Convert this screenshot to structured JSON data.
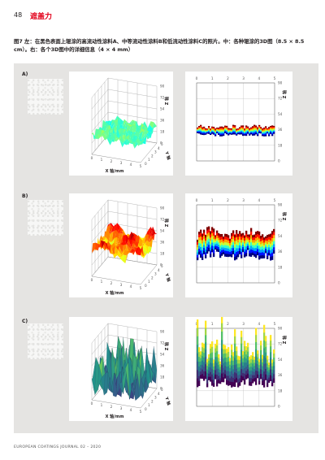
{
  "header": {
    "page_number": "48",
    "section_title": "遮盖力"
  },
  "caption": "图7 左：在黑色表面上辊涂的高流动性涂料A、中等流动性涂料B和低流动性涂料C的照片。中：各种辊涂的3D图（8.5 × 8.5 cm）。右：各个3D图中的详细信息（4 × 4 mm）",
  "rows": [
    {
      "label": "A)"
    },
    {
      "label": "B)"
    },
    {
      "label": "C)"
    }
  ],
  "axes": {
    "x_title": "X 轴/mm",
    "y_title": "Y 轴",
    "z_title": "Z 轴",
    "xy_ticks": [
      "0",
      "1",
      "2",
      "3",
      "4",
      "5"
    ],
    "z_ticks": [
      "0",
      "18",
      "36",
      "54",
      "72",
      "90"
    ]
  },
  "colors": {
    "brand": "#e2001a",
    "panel_bg": "#e5e4e2"
  },
  "footer": "EUROPEAN COATINGS JOURNAL 02 – 2020"
}
